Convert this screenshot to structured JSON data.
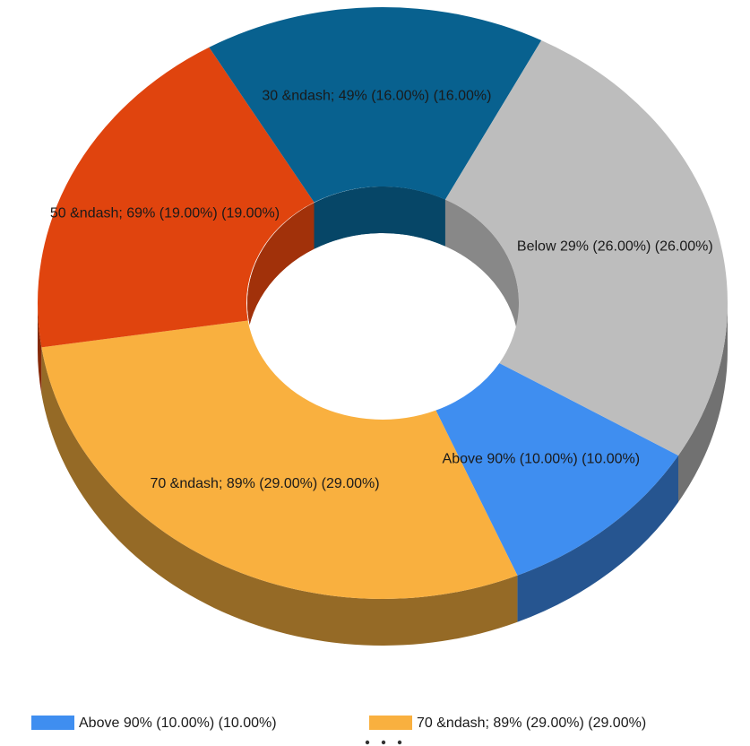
{
  "chart_data": {
    "type": "doughnut",
    "categories": [
      "Above 90% (10.00%) (10.00%)",
      "70 &ndash; 89% (29.00%) (29.00%)",
      "50 &ndash; 69% (19.00%) (19.00%)",
      "30 &ndash; 49% (16.00%) (16.00%)",
      "Below 29% (26.00%) (26.00%)"
    ],
    "values": [
      10,
      29,
      19,
      16,
      26
    ],
    "colors": [
      "#3f8ef0",
      "#f9b03f",
      "#e0440e",
      "#08618f",
      "#bdbdbd"
    ],
    "legend": "bottom"
  }
}
